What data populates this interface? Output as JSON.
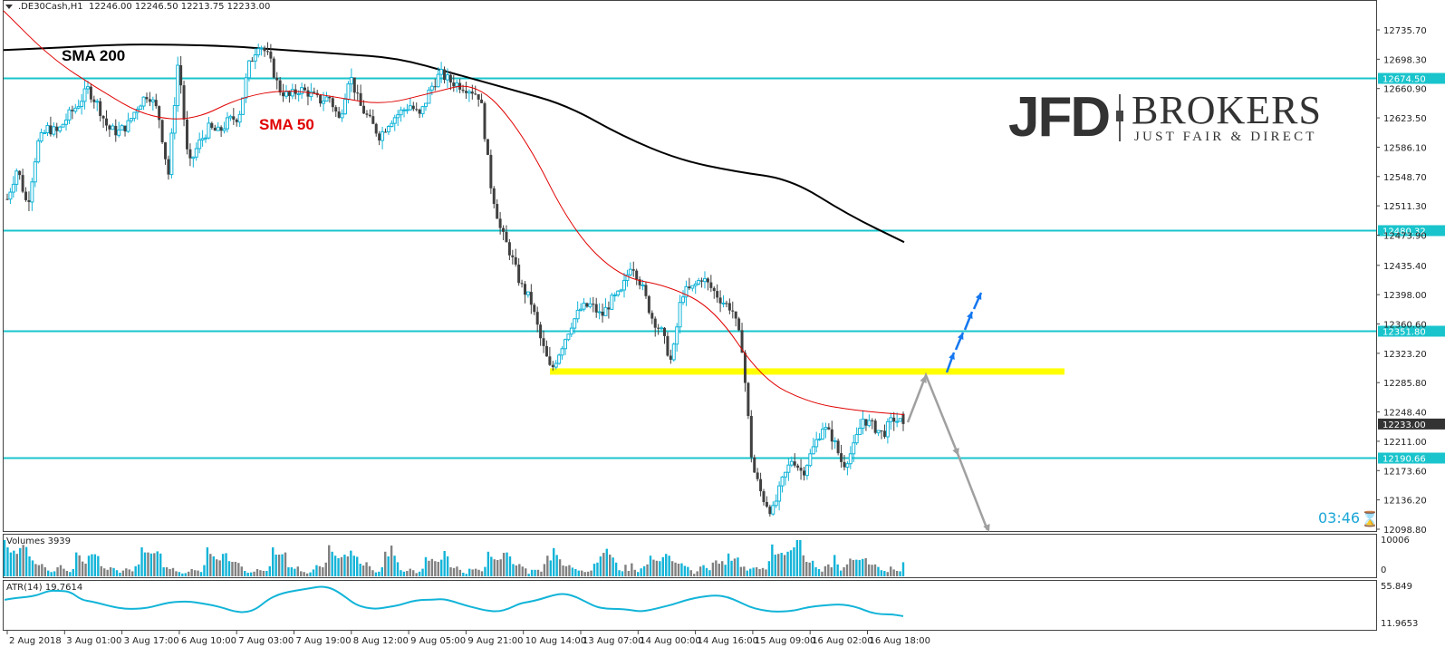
{
  "header": {
    "symbol": ".DE30Cash,H1",
    "ohlc": "12246.00 12246.50 12213.75 12233.00"
  },
  "annotations": {
    "sma200_label": "SMA 200",
    "sma50_label": "SMA 50",
    "timer": "03:46"
  },
  "logo": {
    "brand": "JFD",
    "brokers": "BROKERS",
    "tagline": "JUST FAIR & DIRECT"
  },
  "colors": {
    "bull": "#12b4d8",
    "bear": "#404040",
    "sma200": "#000000",
    "sma50": "#e00000",
    "hline": "#1ac4cc",
    "support_zone": "#ffff00",
    "up_arrow": "#1477f0",
    "scenario_arrow": "#a0a0a0",
    "volume_up": "#12b4d8",
    "volume_down": "#808080",
    "atr": "#12b4d8"
  },
  "sub_panels": {
    "volumes_label": "Volumes 3939",
    "volumes_max": "10006",
    "volumes_min": "0",
    "atr_label": "ATR(14) 19.7614",
    "atr_max": "55.849",
    "atr_min": "11.9653"
  },
  "chart_data": {
    "type": "candlestick",
    "title": ".DE30Cash,H1",
    "instrument": ".DE30Cash",
    "timeframe": "H1",
    "last_ohlc": {
      "open": 12246.0,
      "high": 12246.5,
      "low": 12213.75,
      "close": 12233.0
    },
    "current_price": 12233.0,
    "y_ticks": [
      12735.7,
      12698.3,
      12660.9,
      12623.5,
      12586.1,
      12548.7,
      12511.3,
      12473.9,
      12435.4,
      12398.0,
      12360.6,
      12323.2,
      12285.8,
      12248.4,
      12211.0,
      12173.6,
      12136.2,
      12098.8
    ],
    "ylim": [
      12098.8,
      12735.7
    ],
    "x_ticks": [
      "2 Aug 2018",
      "3 Aug 01:00",
      "3 Aug 17:00",
      "6 Aug 10:00",
      "7 Aug 03:00",
      "7 Aug 19:00",
      "8 Aug 12:00",
      "9 Aug 05:00",
      "9 Aug 21:00",
      "10 Aug 14:00",
      "13 Aug 07:00",
      "14 Aug 00:00",
      "14 Aug 16:00",
      "15 Aug 09:00",
      "16 Aug 02:00",
      "16 Aug 18:00"
    ],
    "horizontal_levels": [
      {
        "price": 12674.5,
        "label": "12674.50"
      },
      {
        "price": 12480.32,
        "label": "12480.32"
      },
      {
        "price": 12351.8,
        "label": "12351.80"
      },
      {
        "price": 12190.66,
        "label": "12190.66"
      }
    ],
    "support_zone": {
      "price": 12300,
      "x_start_label": "10 Aug 14:00",
      "x_end": "projection"
    },
    "indicators": [
      {
        "name": "SMA 200",
        "color": "#000000"
      },
      {
        "name": "SMA 50",
        "color": "#e00000"
      }
    ],
    "close_path": [
      12520,
      12560,
      12510,
      12590,
      12610,
      12605,
      12625,
      12640,
      12660,
      12640,
      12610,
      12605,
      12615,
      12640,
      12655,
      12630,
      12550,
      12700,
      12560,
      12590,
      12610,
      12605,
      12620,
      12625,
      12690,
      12720,
      12700,
      12660,
      12650,
      12660,
      12655,
      12645,
      12650,
      12620,
      12680,
      12640,
      12620,
      12600,
      12620,
      12630,
      12640,
      12625,
      12660,
      12680,
      12670,
      12665,
      12660,
      12650,
      12540,
      12480,
      12450,
      12410,
      12390,
      12340,
      12300,
      12330,
      12360,
      12380,
      12385,
      12370,
      12390,
      12400,
      12440,
      12410,
      12370,
      12350,
      12310,
      12400,
      12405,
      12420,
      12405,
      12390,
      12380,
      12330,
      12180,
      12140,
      12120,
      12160,
      12190,
      12170,
      12200,
      12230,
      12215,
      12180,
      12200,
      12240,
      12230,
      12220,
      12240,
      12233
    ],
    "sma200_path": [
      12710,
      12713,
      12717,
      12717,
      12715,
      12710,
      12705,
      12700,
      12680,
      12660,
      12640,
      12600,
      12570,
      12555,
      12545,
      12500,
      12465
    ],
    "sma50_path": [
      12760,
      12700,
      12660,
      12625,
      12620,
      12650,
      12660,
      12650,
      12640,
      12655,
      12670,
      12600,
      12480,
      12420,
      12410,
      12380,
      12290,
      12260,
      12250,
      12245
    ],
    "volumes": [
      10006,
      8000,
      6600,
      7100,
      6200,
      7800,
      8700,
      8100,
      5500,
      4400,
      3400,
      3100,
      3400,
      2500,
      1600,
      1200,
      1400,
      2500,
      3100,
      2100,
      1500,
      1200,
      2000,
      6600,
      5800,
      4100,
      3500,
      5700,
      6100,
      6100,
      5600,
      2800,
      2200,
      1800,
      2500,
      2300,
      1700,
      1000,
      1600,
      2200,
      1900,
      1400,
      2800,
      3300,
      8000,
      6600,
      6600,
      6300,
      6400,
      6900,
      6300,
      2500,
      2500,
      2000,
      2300,
      1400,
      1200,
      800,
      900,
      1300,
      2000,
      1700,
      1600,
      1200,
      3100,
      8000,
      6200,
      5500,
      4700,
      4400,
      6200,
      6400,
      4200,
      4000,
      4000,
      3700,
      2700,
      1500,
      1000,
      1100,
      1300,
      2000,
      1700,
      1500,
      1500,
      2800,
      8000,
      6000,
      6000,
      6100,
      6600,
      2500,
      2500,
      2100,
      2700,
      1400,
      1200,
      800,
      1100,
      1900,
      3100,
      2800,
      2500,
      3800,
      8600,
      6800,
      5700,
      5000,
      5300,
      6000,
      5500,
      7100,
      5700,
      5400,
      3500,
      3000,
      3900,
      2800,
      1700,
      1100,
      1300,
      2500,
      6800,
      5500,
      8500,
      5700,
      3900,
      1700,
      1300,
      1500,
      2100,
      1700,
      900,
      1300,
      2100,
      5300,
      4300,
      4800,
      4200,
      4000,
      4600,
      7000,
      5500,
      2500,
      2300,
      2700,
      1800,
      1000,
      700,
      2100,
      1900,
      2100,
      1800,
      1400,
      2600,
      6800,
      5400,
      4700,
      4500,
      4700,
      6500,
      6600,
      5500,
      3400,
      3000,
      3400,
      2700,
      2200,
      700,
      1800,
      1800,
      1800,
      1300,
      3400,
      5700,
      4400,
      7800,
      5900,
      4700,
      3000,
      2800,
      3100,
      2400,
      2000,
      1600,
      1600,
      1200,
      1300,
      1600,
      3500,
      3800,
      5500,
      6500,
      7600,
      6000,
      5200,
      3800,
      1700,
      1400,
      3200,
      1500,
      3600,
      1800,
      1200,
      2200,
      2800,
      3300,
      5700,
      4600,
      4300,
      4200,
      5300,
      6200,
      5700,
      4200,
      3800,
      3500,
      3600,
      2900,
      2600,
      1700,
      700,
      1400,
      2700,
      3100,
      2300,
      1700,
      3800,
      4400,
      3500,
      4200,
      3200,
      6300,
      4300,
      4900,
      5200,
      2600,
      2700,
      1600,
      2100,
      2400,
      2500,
      2000,
      2300,
      1900,
      4200,
      8800,
      6000,
      6200,
      6500,
      5900,
      6800,
      7200,
      8000,
      10006,
      10006,
      5800,
      4000,
      3800,
      4300,
      2500,
      2000,
      1300,
      2800,
      3300,
      2500,
      5900,
      3300,
      1600,
      2500,
      3300,
      4900,
      4500,
      4600,
      4500,
      4800,
      5000,
      3300,
      3200,
      3300,
      2600,
      1700,
      1500,
      1200,
      2700,
      1900,
      1500,
      1400,
      3900
    ],
    "atr_path": [
      40,
      42,
      43,
      45,
      50,
      50,
      49,
      40,
      38,
      35,
      32,
      30,
      30,
      31,
      34,
      37,
      38,
      38,
      36,
      34,
      31,
      27,
      26,
      30,
      40,
      46,
      49,
      51,
      53,
      55,
      52,
      44,
      35,
      31,
      30,
      32,
      34,
      38,
      40,
      40,
      41,
      38,
      34,
      31,
      28,
      27,
      30,
      36,
      38,
      41,
      45,
      47,
      44,
      38,
      32,
      30,
      30,
      29,
      27,
      29,
      32,
      35,
      39,
      42,
      44,
      45,
      43,
      38,
      32,
      29,
      27,
      27,
      28,
      31,
      33,
      34,
      35,
      34,
      31,
      26,
      24,
      24,
      22
    ]
  }
}
